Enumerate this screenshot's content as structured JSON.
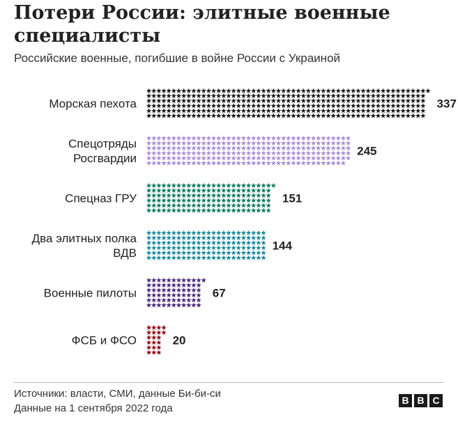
{
  "title": "Потери России: элитные военные специалисты",
  "subtitle": "Российские военные, погибшие в войне России с Украиной",
  "footer": {
    "source": "Источники: власти, СМИ, данные Би-би-си",
    "date": "Данные на 1 сентября 2022 года"
  },
  "logo": [
    "B",
    "B",
    "C"
  ],
  "chart_data": {
    "type": "bar",
    "orientation": "horizontal",
    "mark": "star-icon",
    "categories": [
      [
        "Морская пехота"
      ],
      [
        "Спецотряды",
        "Росгвардии"
      ],
      [
        "Спецназ ГРУ"
      ],
      [
        "Два элитных полка",
        "ВДВ"
      ],
      [
        "Военные пилоты"
      ],
      [
        "ФСБ и ФСО"
      ]
    ],
    "values": [
      337,
      245,
      151,
      144,
      67,
      20
    ],
    "colors": [
      "#1a1a1a",
      "#a98fd8",
      "#0e7a5f",
      "#1a8a9c",
      "#4b2a80",
      "#8f0f1a"
    ]
  }
}
